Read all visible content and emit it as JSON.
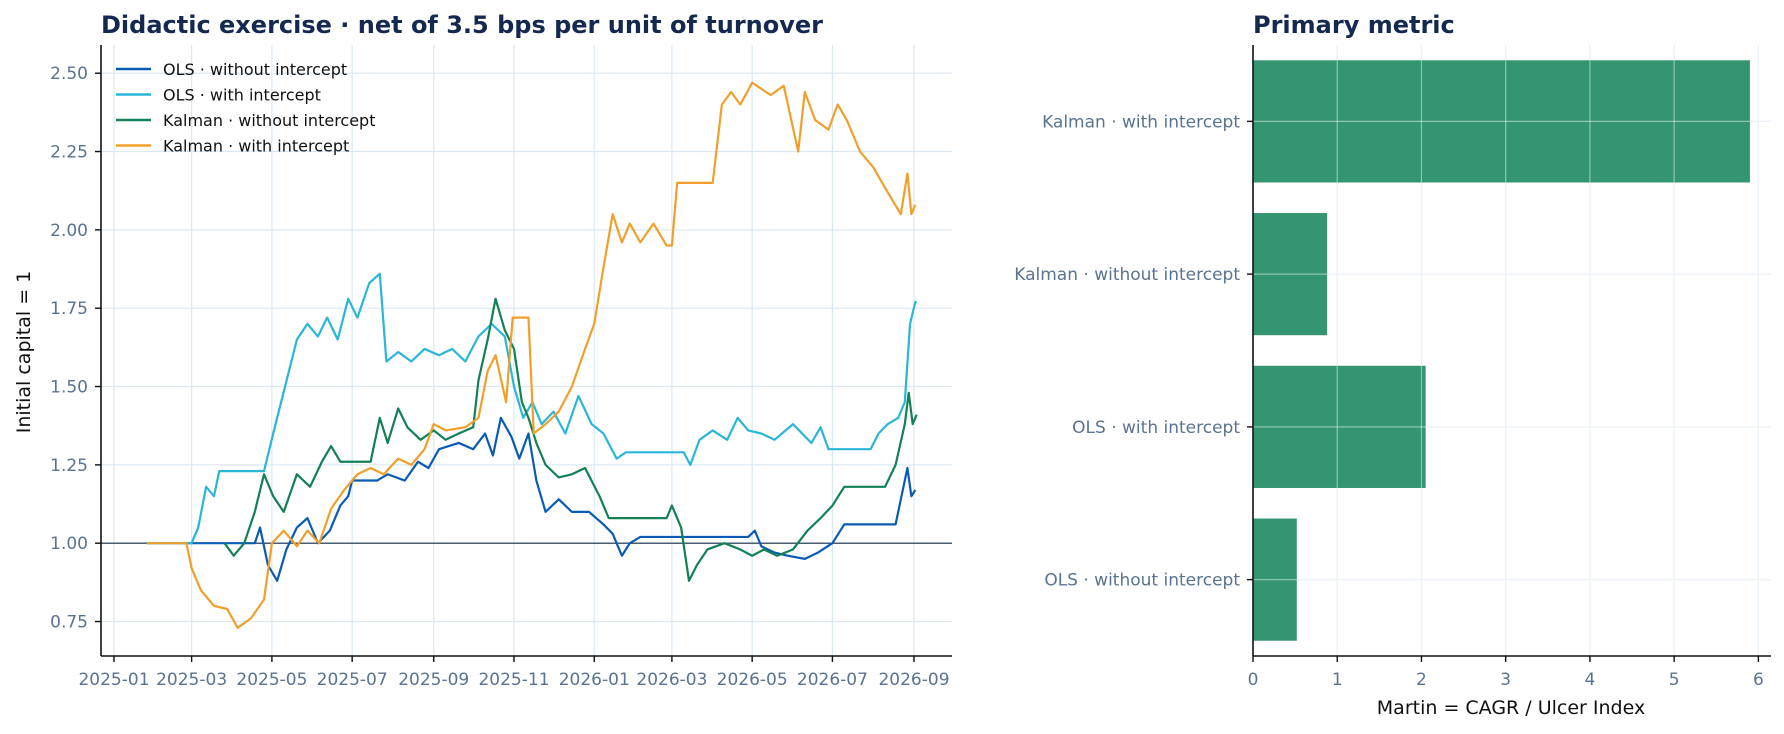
{
  "chart_data": [
    {
      "type": "line",
      "title": "Didactic exercise · net of 3.5 bps per unit of turnover",
      "xlabel": "",
      "ylabel": "Initial capital = 1",
      "x_ticks": [
        "2025-01",
        "2025-03",
        "2025-05",
        "2025-07",
        "2025-09",
        "2025-11",
        "2026-01",
        "2026-03",
        "2026-05",
        "2026-07",
        "2026-09"
      ],
      "ylim": [
        0.64,
        2.59
      ],
      "y_ticks": [
        "0.75",
        "1.00",
        "1.25",
        "1.50",
        "1.75",
        "2.00",
        "2.25",
        "2.50"
      ],
      "reference_line": 1.0,
      "grid": true,
      "legend_position": "upper-left",
      "series": [
        {
          "name": "OLS · without intercept",
          "color": "#0a5bb5",
          "points": [
            [
              "2025-01-26",
              1.0
            ],
            [
              "2025-04-01",
              1.0
            ],
            [
              "2025-04-18",
              1.0
            ],
            [
              "2025-04-22",
              1.05
            ],
            [
              "2025-04-28",
              0.93
            ],
            [
              "2025-05-05",
              0.88
            ],
            [
              "2025-05-12",
              0.98
            ],
            [
              "2025-05-20",
              1.05
            ],
            [
              "2025-05-28",
              1.08
            ],
            [
              "2025-06-05",
              1.0
            ],
            [
              "2025-06-14",
              1.04
            ],
            [
              "2025-06-22",
              1.12
            ],
            [
              "2025-06-28",
              1.15
            ],
            [
              "2025-07-01",
              1.2
            ],
            [
              "2025-07-20",
              1.2
            ],
            [
              "2025-07-28",
              1.22
            ],
            [
              "2025-08-10",
              1.2
            ],
            [
              "2025-08-20",
              1.26
            ],
            [
              "2025-08-28",
              1.24
            ],
            [
              "2025-09-05",
              1.3
            ],
            [
              "2025-09-20",
              1.32
            ],
            [
              "2025-10-01",
              1.3
            ],
            [
              "2025-10-10",
              1.35
            ],
            [
              "2025-10-16",
              1.28
            ],
            [
              "2025-10-22",
              1.4
            ],
            [
              "2025-10-30",
              1.34
            ],
            [
              "2025-11-05",
              1.27
            ],
            [
              "2025-11-12",
              1.35
            ],
            [
              "2025-11-18",
              1.2
            ],
            [
              "2025-11-25",
              1.1
            ],
            [
              "2025-12-05",
              1.14
            ],
            [
              "2025-12-15",
              1.1
            ],
            [
              "2025-12-28",
              1.1
            ],
            [
              "2026-01-08",
              1.06
            ],
            [
              "2026-01-15",
              1.03
            ],
            [
              "2026-01-22",
              0.96
            ],
            [
              "2026-01-28",
              1.0
            ],
            [
              "2026-02-05",
              1.02
            ],
            [
              "2026-04-28",
              1.02
            ],
            [
              "2026-05-03",
              1.04
            ],
            [
              "2026-05-08",
              0.99
            ],
            [
              "2026-05-18",
              0.97
            ],
            [
              "2026-05-28",
              0.96
            ],
            [
              "2026-06-10",
              0.95
            ],
            [
              "2026-06-20",
              0.97
            ],
            [
              "2026-07-01",
              1.0
            ],
            [
              "2026-07-10",
              1.06
            ],
            [
              "2026-08-18",
              1.06
            ],
            [
              "2026-08-22",
              1.14
            ],
            [
              "2026-08-27",
              1.24
            ],
            [
              "2026-08-30",
              1.15
            ],
            [
              "2026-09-02",
              1.17
            ]
          ]
        },
        {
          "name": "OLS · with intercept",
          "color": "#2ab6d8",
          "points": [
            [
              "2025-01-26",
              1.0
            ],
            [
              "2025-03-01",
              1.0
            ],
            [
              "2025-03-06",
              1.05
            ],
            [
              "2025-03-12",
              1.18
            ],
            [
              "2025-03-18",
              1.15
            ],
            [
              "2025-03-22",
              1.23
            ],
            [
              "2025-04-25",
              1.23
            ],
            [
              "2025-05-02",
              1.35
            ],
            [
              "2025-05-08",
              1.45
            ],
            [
              "2025-05-14",
              1.55
            ],
            [
              "2025-05-20",
              1.65
            ],
            [
              "2025-05-28",
              1.7
            ],
            [
              "2025-06-05",
              1.66
            ],
            [
              "2025-06-12",
              1.72
            ],
            [
              "2025-06-20",
              1.65
            ],
            [
              "2025-06-28",
              1.78
            ],
            [
              "2025-07-05",
              1.72
            ],
            [
              "2025-07-14",
              1.83
            ],
            [
              "2025-07-22",
              1.86
            ],
            [
              "2025-07-27",
              1.58
            ],
            [
              "2025-08-05",
              1.61
            ],
            [
              "2025-08-15",
              1.58
            ],
            [
              "2025-08-25",
              1.62
            ],
            [
              "2025-09-05",
              1.6
            ],
            [
              "2025-09-15",
              1.62
            ],
            [
              "2025-09-25",
              1.58
            ],
            [
              "2025-10-05",
              1.66
            ],
            [
              "2025-10-15",
              1.7
            ],
            [
              "2025-10-25",
              1.66
            ],
            [
              "2025-11-01",
              1.5
            ],
            [
              "2025-11-08",
              1.4
            ],
            [
              "2025-11-15",
              1.45
            ],
            [
              "2025-11-22",
              1.38
            ],
            [
              "2025-12-01",
              1.42
            ],
            [
              "2025-12-10",
              1.35
            ],
            [
              "2025-12-20",
              1.47
            ],
            [
              "2025-12-30",
              1.38
            ],
            [
              "2026-01-08",
              1.35
            ],
            [
              "2026-01-18",
              1.27
            ],
            [
              "2026-01-25",
              1.29
            ],
            [
              "2026-03-10",
              1.29
            ],
            [
              "2026-03-15",
              1.25
            ],
            [
              "2026-03-22",
              1.33
            ],
            [
              "2026-04-01",
              1.36
            ],
            [
              "2026-04-12",
              1.33
            ],
            [
              "2026-04-20",
              1.4
            ],
            [
              "2026-04-28",
              1.36
            ],
            [
              "2026-05-08",
              1.35
            ],
            [
              "2026-05-18",
              1.33
            ],
            [
              "2026-06-01",
              1.38
            ],
            [
              "2026-06-15",
              1.32
            ],
            [
              "2026-06-22",
              1.37
            ],
            [
              "2026-06-28",
              1.3
            ],
            [
              "2026-07-01",
              1.3
            ],
            [
              "2026-07-30",
              1.3
            ],
            [
              "2026-08-05",
              1.35
            ],
            [
              "2026-08-12",
              1.38
            ],
            [
              "2026-08-20",
              1.4
            ],
            [
              "2026-08-25",
              1.45
            ],
            [
              "2026-08-29",
              1.7
            ],
            [
              "2026-09-02",
              1.77
            ],
            [
              "2026-09-03",
              1.77
            ]
          ]
        },
        {
          "name": "Kalman · without intercept",
          "color": "#138055",
          "points": [
            [
              "2025-03-26",
              1.0
            ],
            [
              "2025-04-02",
              0.96
            ],
            [
              "2025-04-10",
              1.0
            ],
            [
              "2025-04-18",
              1.1
            ],
            [
              "2025-04-25",
              1.22
            ],
            [
              "2025-05-02",
              1.15
            ],
            [
              "2025-05-10",
              1.1
            ],
            [
              "2025-05-20",
              1.22
            ],
            [
              "2025-05-30",
              1.18
            ],
            [
              "2025-06-08",
              1.26
            ],
            [
              "2025-06-15",
              1.31
            ],
            [
              "2025-06-22",
              1.26
            ],
            [
              "2025-07-15",
              1.26
            ],
            [
              "2025-07-22",
              1.4
            ],
            [
              "2025-07-28",
              1.32
            ],
            [
              "2025-08-05",
              1.43
            ],
            [
              "2025-08-12",
              1.37
            ],
            [
              "2025-08-22",
              1.33
            ],
            [
              "2025-09-01",
              1.36
            ],
            [
              "2025-09-10",
              1.33
            ],
            [
              "2025-09-20",
              1.35
            ],
            [
              "2025-10-01",
              1.37
            ],
            [
              "2025-10-05",
              1.52
            ],
            [
              "2025-10-12",
              1.65
            ],
            [
              "2025-10-18",
              1.78
            ],
            [
              "2025-10-25",
              1.68
            ],
            [
              "2025-11-01",
              1.62
            ],
            [
              "2025-11-07",
              1.45
            ],
            [
              "2025-11-12",
              1.4
            ],
            [
              "2025-11-18",
              1.32
            ],
            [
              "2025-11-25",
              1.25
            ],
            [
              "2025-12-05",
              1.21
            ],
            [
              "2025-12-15",
              1.22
            ],
            [
              "2025-12-25",
              1.24
            ],
            [
              "2026-01-05",
              1.15
            ],
            [
              "2026-01-12",
              1.08
            ],
            [
              "2026-02-25",
              1.08
            ],
            [
              "2026-03-01",
              1.12
            ],
            [
              "2026-03-08",
              1.05
            ],
            [
              "2026-03-14",
              0.88
            ],
            [
              "2026-03-20",
              0.93
            ],
            [
              "2026-03-28",
              0.98
            ],
            [
              "2026-04-10",
              1.0
            ],
            [
              "2026-04-22",
              0.98
            ],
            [
              "2026-05-01",
              0.96
            ],
            [
              "2026-05-10",
              0.98
            ],
            [
              "2026-05-20",
              0.96
            ],
            [
              "2026-06-01",
              0.98
            ],
            [
              "2026-06-12",
              1.04
            ],
            [
              "2026-06-22",
              1.08
            ],
            [
              "2026-07-01",
              1.12
            ],
            [
              "2026-07-10",
              1.18
            ],
            [
              "2026-08-10",
              1.18
            ],
            [
              "2026-08-18",
              1.25
            ],
            [
              "2026-08-25",
              1.38
            ],
            [
              "2026-08-28",
              1.48
            ],
            [
              "2026-08-31",
              1.38
            ],
            [
              "2026-09-03",
              1.41
            ]
          ]
        },
        {
          "name": "Kalman · with intercept",
          "color": "#f0a02a",
          "points": [
            [
              "2025-01-26",
              1.0
            ],
            [
              "2025-02-25",
              1.0
            ],
            [
              "2025-03-01",
              0.92
            ],
            [
              "2025-03-08",
              0.85
            ],
            [
              "2025-03-18",
              0.8
            ],
            [
              "2025-03-28",
              0.79
            ],
            [
              "2025-04-05",
              0.73
            ],
            [
              "2025-04-15",
              0.76
            ],
            [
              "2025-04-25",
              0.82
            ],
            [
              "2025-05-01",
              1.0
            ],
            [
              "2025-05-10",
              1.04
            ],
            [
              "2025-05-20",
              0.99
            ],
            [
              "2025-05-28",
              1.04
            ],
            [
              "2025-06-06",
              1.0
            ],
            [
              "2025-06-15",
              1.11
            ],
            [
              "2025-06-25",
              1.17
            ],
            [
              "2025-07-05",
              1.22
            ],
            [
              "2025-07-15",
              1.24
            ],
            [
              "2025-07-25",
              1.22
            ],
            [
              "2025-08-05",
              1.27
            ],
            [
              "2025-08-15",
              1.25
            ],
            [
              "2025-08-25",
              1.3
            ],
            [
              "2025-09-01",
              1.38
            ],
            [
              "2025-09-10",
              1.36
            ],
            [
              "2025-09-25",
              1.37
            ],
            [
              "2025-10-05",
              1.4
            ],
            [
              "2025-10-12",
              1.55
            ],
            [
              "2025-10-18",
              1.6
            ],
            [
              "2025-10-26",
              1.45
            ],
            [
              "2025-10-31",
              1.72
            ],
            [
              "2025-11-12",
              1.72
            ],
            [
              "2025-11-16",
              1.35
            ],
            [
              "2025-11-25",
              1.38
            ],
            [
              "2025-12-05",
              1.42
            ],
            [
              "2025-12-15",
              1.5
            ],
            [
              "2025-12-25",
              1.62
            ],
            [
              "2026-01-01",
              1.7
            ],
            [
              "2026-01-08",
              1.88
            ],
            [
              "2026-01-15",
              2.05
            ],
            [
              "2026-01-22",
              1.96
            ],
            [
              "2026-01-28",
              2.02
            ],
            [
              "2026-02-05",
              1.96
            ],
            [
              "2026-02-15",
              2.02
            ],
            [
              "2026-02-25",
              1.95
            ],
            [
              "2026-03-01",
              1.95
            ],
            [
              "2026-03-05",
              2.15
            ],
            [
              "2026-04-01",
              2.15
            ],
            [
              "2026-04-08",
              2.4
            ],
            [
              "2026-04-15",
              2.44
            ],
            [
              "2026-04-22",
              2.4
            ],
            [
              "2026-05-01",
              2.47
            ],
            [
              "2026-05-15",
              2.43
            ],
            [
              "2026-05-25",
              2.46
            ],
            [
              "2026-06-05",
              2.25
            ],
            [
              "2026-06-10",
              2.44
            ],
            [
              "2026-06-18",
              2.35
            ],
            [
              "2026-06-28",
              2.32
            ],
            [
              "2026-07-05",
              2.4
            ],
            [
              "2026-07-12",
              2.35
            ],
            [
              "2026-07-22",
              2.25
            ],
            [
              "2026-08-01",
              2.2
            ],
            [
              "2026-08-12",
              2.12
            ],
            [
              "2026-08-22",
              2.05
            ],
            [
              "2026-08-27",
              2.18
            ],
            [
              "2026-08-30",
              2.05
            ],
            [
              "2026-09-02",
              2.08
            ]
          ]
        }
      ]
    },
    {
      "type": "bar",
      "orientation": "horizontal",
      "title": "Primary metric",
      "xlabel": "Martin = CAGR / Ulcer Index",
      "ylabel": "",
      "xlim": [
        0,
        6.15
      ],
      "x_ticks": [
        "0",
        "1",
        "2",
        "3",
        "4",
        "5",
        "6"
      ],
      "grid": true,
      "bar_color": "#339670",
      "categories": [
        "Kalman · with intercept",
        "Kalman · without intercept",
        "OLS · with intercept",
        "OLS · without intercept"
      ],
      "values": [
        5.9,
        0.88,
        2.05,
        0.52
      ]
    }
  ]
}
